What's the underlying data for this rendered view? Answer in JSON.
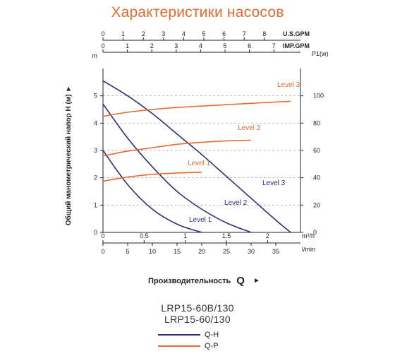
{
  "title": "Характеристики насосов",
  "models": [
    "LRP15-60B/130",
    "LRP15-60/130"
  ],
  "legend": {
    "qh_label": "Q-H",
    "qp_label": "Q-P",
    "qh_color": "#2b2f78",
    "qp_color": "#e8692d"
  },
  "x_title": "Производительность",
  "x_title_symbol": "Q",
  "x_title_arrow": "►",
  "y_title": "Общий манометрический напор H (м) ►",
  "chart_data": {
    "type": "line",
    "left_axis": {
      "unit": "m",
      "ticks": [
        0,
        1,
        2,
        3,
        4,
        5
      ],
      "range": [
        0,
        6
      ]
    },
    "right_axis": {
      "unit": "P1(w)",
      "ticks": [
        0,
        20,
        40,
        60,
        80,
        100
      ],
      "range": [
        0,
        120
      ]
    },
    "top_axes": [
      {
        "unit": "U.S.GPM",
        "ticks": [
          0,
          1,
          2,
          3,
          4,
          5,
          6,
          7,
          8
        ]
      },
      {
        "unit": "IMP.GPM",
        "ticks": [
          0,
          1,
          2,
          3,
          4,
          5,
          6,
          7
        ]
      }
    ],
    "bottom_axes": [
      {
        "unit": "m³/h",
        "ticks": [
          "0",
          "0.5",
          "1",
          "1.5",
          "2"
        ],
        "tick_values": [
          0,
          0.5,
          1,
          1.5,
          2
        ]
      },
      {
        "unit": "l/min",
        "ticks": [
          "0",
          "5",
          "10",
          "15",
          "20",
          "25",
          "30",
          "35"
        ],
        "tick_values": [
          0,
          5,
          10,
          15,
          20,
          25,
          30,
          35
        ]
      }
    ],
    "x_range_l_min": [
      0,
      40
    ],
    "series_qh": [
      {
        "name": "Level 1",
        "points": [
          [
            0,
            3.0
          ],
          [
            5,
            1.75
          ],
          [
            10,
            0.85
          ],
          [
            15,
            0.3
          ],
          [
            20,
            0.0
          ]
        ]
      },
      {
        "name": "Level 2",
        "points": [
          [
            0,
            4.7
          ],
          [
            5,
            3.45
          ],
          [
            10,
            2.4
          ],
          [
            15,
            1.5
          ],
          [
            20,
            0.85
          ],
          [
            25,
            0.35
          ],
          [
            30,
            0.0
          ]
        ]
      },
      {
        "name": "Level 3",
        "points": [
          [
            0,
            5.55
          ],
          [
            5,
            5.0
          ],
          [
            10,
            4.35
          ],
          [
            15,
            3.6
          ],
          [
            20,
            2.85
          ],
          [
            25,
            2.05
          ],
          [
            30,
            1.25
          ],
          [
            35,
            0.45
          ],
          [
            38,
            0.0
          ]
        ]
      }
    ],
    "series_qp": [
      {
        "name": "Level 1",
        "points": [
          [
            0,
            37.5
          ],
          [
            5,
            40.5
          ],
          [
            10,
            42.5
          ],
          [
            15,
            43.5
          ],
          [
            20,
            44
          ]
        ]
      },
      {
        "name": "Level 2",
        "points": [
          [
            0,
            56
          ],
          [
            5,
            59.5
          ],
          [
            10,
            62
          ],
          [
            15,
            64.5
          ],
          [
            20,
            66
          ],
          [
            25,
            67
          ],
          [
            30,
            67.5
          ]
        ]
      },
      {
        "name": "Level 3",
        "points": [
          [
            0,
            85
          ],
          [
            5,
            88
          ],
          [
            10,
            90
          ],
          [
            15,
            91.5
          ],
          [
            20,
            92.5
          ],
          [
            25,
            93.5
          ],
          [
            30,
            94.5
          ],
          [
            35,
            95.5
          ],
          [
            38,
            96
          ]
        ]
      }
    ]
  }
}
